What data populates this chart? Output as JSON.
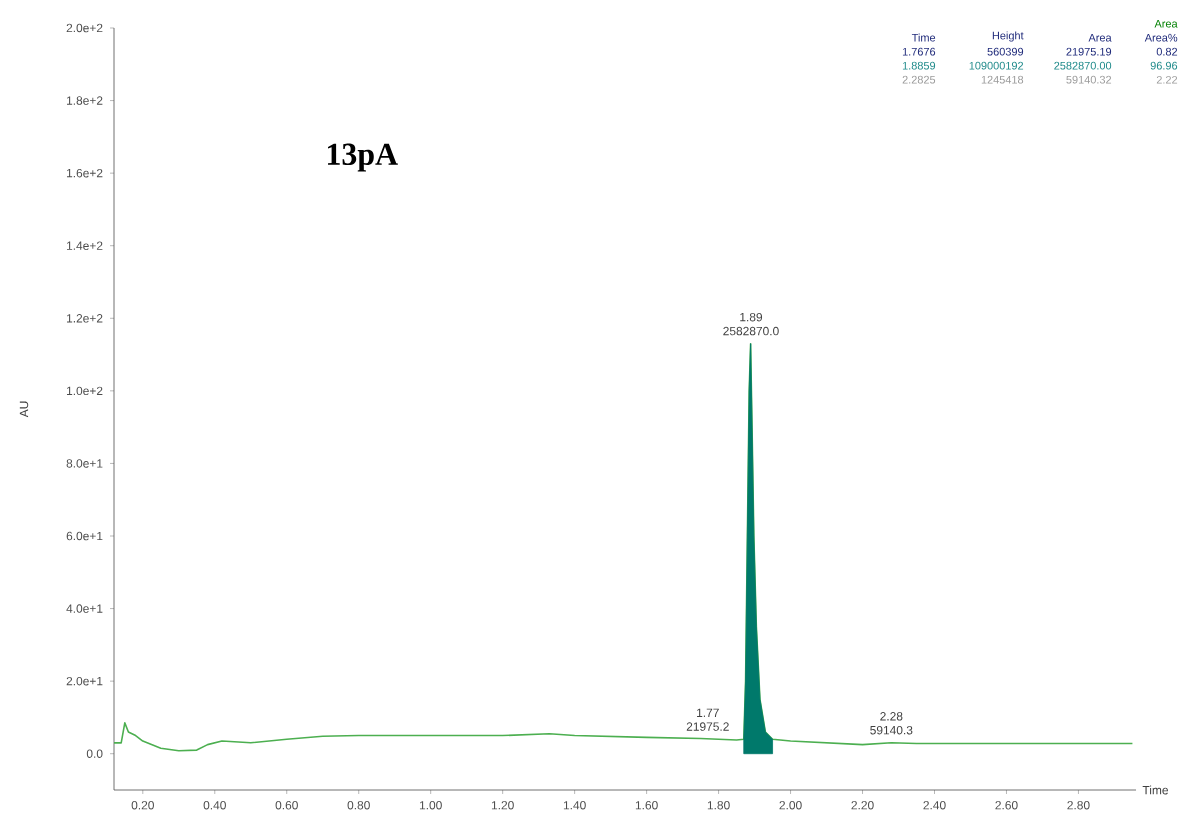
{
  "chart_data": {
    "type": "line",
    "title": "13pA",
    "ylabel": "AU",
    "xlabel": "Time",
    "xlim": [
      0.12,
      2.96
    ],
    "ylim": [
      -10,
      200
    ],
    "xticks": [
      {
        "value": 0.2,
        "label": "0.20"
      },
      {
        "value": 0.4,
        "label": "0.40"
      },
      {
        "value": 0.6,
        "label": "0.60"
      },
      {
        "value": 0.8,
        "label": "0.80"
      },
      {
        "value": 1.0,
        "label": "1.00"
      },
      {
        "value": 1.2,
        "label": "1.20"
      },
      {
        "value": 1.4,
        "label": "1.40"
      },
      {
        "value": 1.6,
        "label": "1.60"
      },
      {
        "value": 1.8,
        "label": "1.80"
      },
      {
        "value": 2.0,
        "label": "2.00"
      },
      {
        "value": 2.2,
        "label": "2.20"
      },
      {
        "value": 2.4,
        "label": "2.40"
      },
      {
        "value": 2.6,
        "label": "2.60"
      },
      {
        "value": 2.8,
        "label": "2.80"
      }
    ],
    "yticks": [
      {
        "value": 0,
        "label": "0.0"
      },
      {
        "value": 20,
        "label": "2.0e+1"
      },
      {
        "value": 40,
        "label": "4.0e+1"
      },
      {
        "value": 60,
        "label": "6.0e+1"
      },
      {
        "value": 80,
        "label": "8.0e+1"
      },
      {
        "value": 100,
        "label": "1.0e+2"
      },
      {
        "value": 120,
        "label": "1.2e+2"
      },
      {
        "value": 140,
        "label": "1.4e+2"
      },
      {
        "value": 160,
        "label": "1.6e+2"
      },
      {
        "value": 180,
        "label": "1.8e+2"
      },
      {
        "value": 200,
        "label": "2.0e+2"
      }
    ],
    "series": [
      {
        "color": "#4caf50",
        "x": [
          0.12,
          0.14,
          0.15,
          0.16,
          0.18,
          0.2,
          0.25,
          0.3,
          0.35,
          0.38,
          0.42,
          0.5,
          0.6,
          0.7,
          0.8,
          1.0,
          1.2,
          1.33,
          1.4,
          1.6,
          1.75,
          1.8,
          1.85,
          1.87,
          1.875,
          1.88,
          1.885,
          1.889,
          1.893,
          1.898,
          1.905,
          1.915,
          1.93,
          1.95,
          2.0,
          2.1,
          2.2,
          2.28,
          2.35,
          2.5,
          2.7,
          2.95
        ],
        "values": [
          3,
          3,
          8.5,
          6,
          5,
          3.5,
          1.5,
          0.8,
          1,
          2.5,
          3.5,
          3,
          4,
          4.8,
          5,
          5,
          5,
          5.5,
          5,
          4.5,
          4.2,
          4,
          3.8,
          4,
          20,
          60,
          100,
          113,
          90,
          60,
          35,
          15,
          6,
          4,
          3.5,
          3,
          2.5,
          3,
          2.8,
          2.8,
          2.8,
          2.8
        ]
      },
      {
        "type": "area",
        "color": "#00796b",
        "x": [
          1.87,
          1.875,
          1.88,
          1.885,
          1.889,
          1.893,
          1.898,
          1.905,
          1.915,
          1.93,
          1.95
        ],
        "values": [
          4,
          20,
          60,
          100,
          113,
          90,
          60,
          35,
          15,
          6,
          4
        ]
      }
    ],
    "annotations": [
      {
        "text": "1.89",
        "x": 1.89,
        "y": 113
      },
      {
        "text": "2582870.0",
        "x": 1.89,
        "y": 113
      },
      {
        "text": "1.77",
        "x": 1.77,
        "y": 4
      },
      {
        "text": "21975.2",
        "x": 1.77,
        "y": 4
      },
      {
        "text": "2.28",
        "x": 2.28,
        "y": 3
      },
      {
        "text": "59140.3",
        "x": 2.28,
        "y": 3
      },
      "Area",
      "Time",
      "Height",
      "Area",
      "Area%",
      "1.7676",
      "560399",
      "21975.19",
      "0.82",
      "1.8859",
      "109000192",
      "2582870.00",
      "96.96",
      "2.2825",
      "1245418",
      "59140.32",
      "2.22"
    ]
  }
}
